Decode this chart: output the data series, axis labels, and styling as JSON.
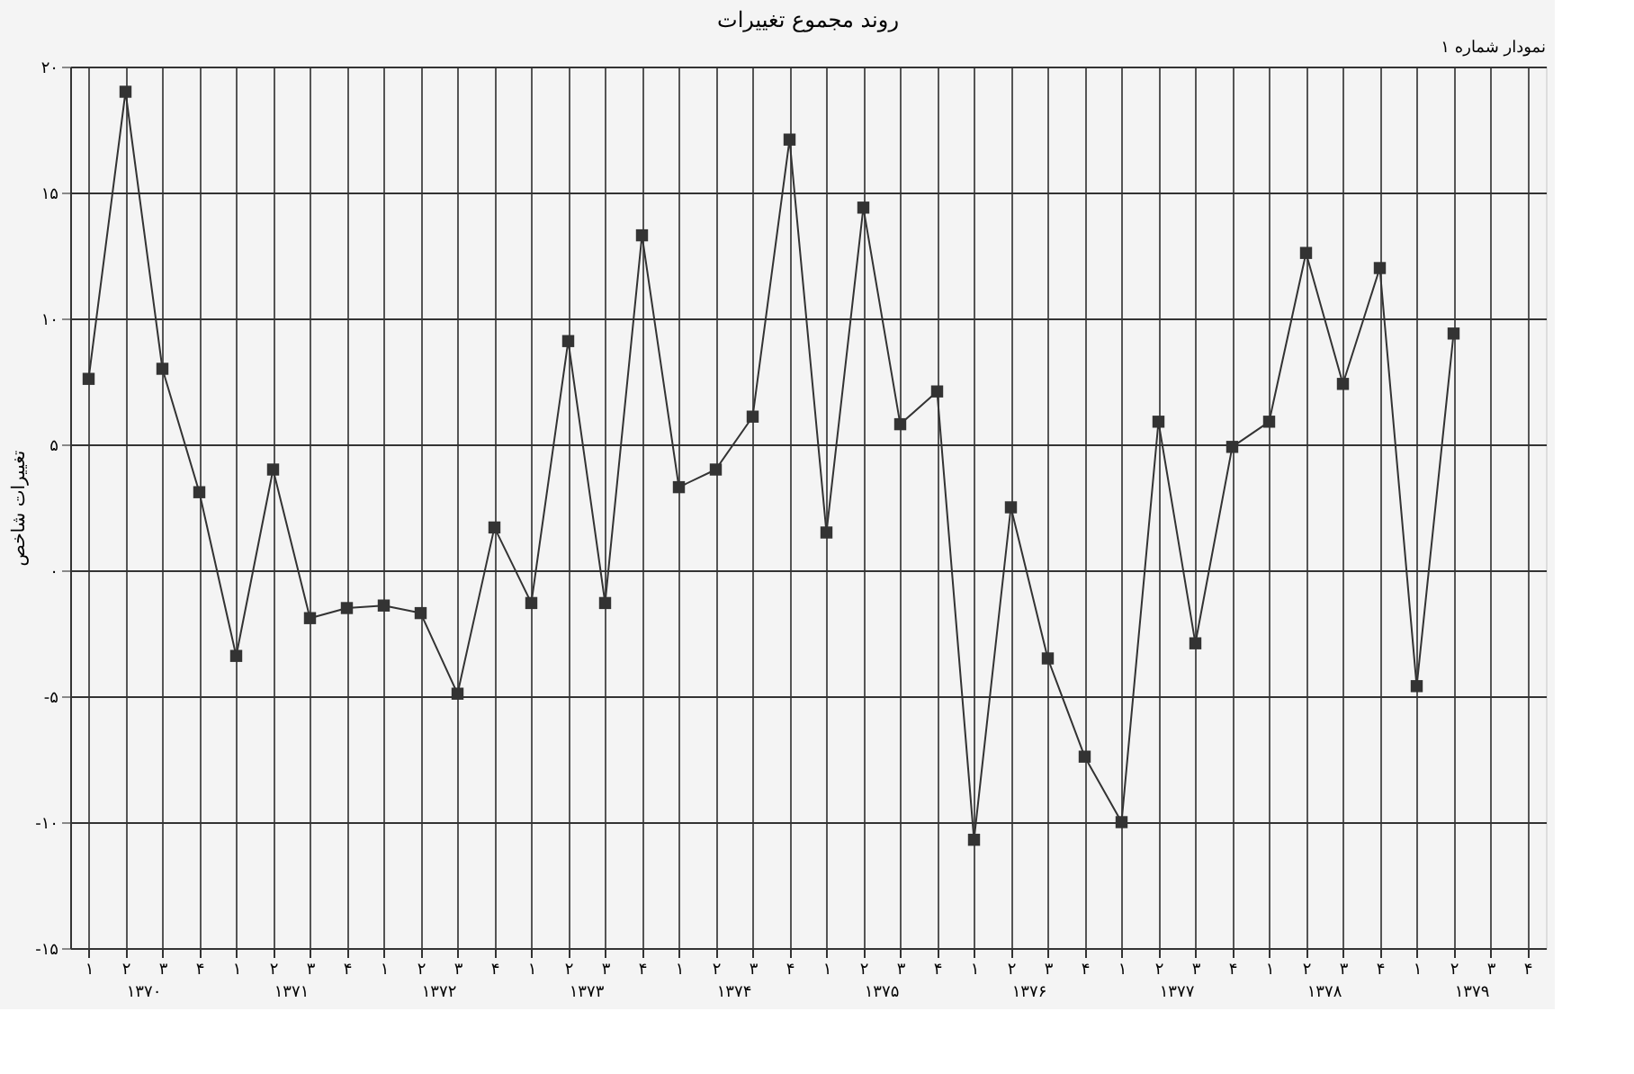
{
  "chart_data": {
    "type": "line",
    "title": "روند مجموع تغییرات",
    "subtitle": "نمودار شماره ۱",
    "ylabel": "تغییرات شاخص",
    "categories": [
      "۱",
      "۲",
      "۳",
      "۴",
      "۱",
      "۲",
      "۳",
      "۴",
      "۱",
      "۲",
      "۳",
      "۴",
      "۱",
      "۲",
      "۳",
      "۴",
      "۱",
      "۲",
      "۳",
      "۴",
      "۱",
      "۲",
      "۳",
      "۴",
      "۱",
      "۲",
      "۳",
      "۴",
      "۱",
      "۲",
      "۳",
      "۴",
      "۱",
      "۲",
      "۳",
      "۴",
      "۱",
      "۲",
      "۳",
      "۴"
    ],
    "annotations": [
      "۱۳۷۰",
      "۱۳۷۱",
      "۱۳۷۲",
      "۱۳۷۳",
      "۱۳۷۴",
      "۱۳۷۵",
      "۱۳۷۶",
      "۱۳۷۷",
      "۱۳۷۸",
      "۱۳۷۹"
    ],
    "series": [
      {
        "color": "#333333",
        "values": [
          7.6,
          19.0,
          8.0,
          3.1,
          -3.4,
          4.0,
          -1.9,
          -1.5,
          -1.4,
          -1.7,
          -4.9,
          1.7,
          -1.3,
          9.1,
          -1.3,
          13.3,
          3.3,
          4.0,
          6.1,
          17.1,
          1.5,
          14.4,
          5.8,
          7.1,
          -10.7,
          2.5,
          -3.5,
          -7.4,
          -10.0,
          5.9,
          -2.9,
          4.9,
          5.9,
          12.6,
          7.4,
          12.0,
          -4.6,
          9.4,
          null,
          null
        ]
      }
    ],
    "ylim": [
      -15,
      20
    ],
    "yticks": [
      {
        "value": -15,
        "label": "-۱۵"
      },
      {
        "value": -10,
        "label": "-۱۰"
      },
      {
        "value": -5,
        "label": "-۵"
      },
      {
        "value": 0,
        "label": "۰"
      },
      {
        "value": 5,
        "label": "۵"
      },
      {
        "value": 10,
        "label": "۱۰"
      },
      {
        "value": 15,
        "label": "۱۵"
      },
      {
        "value": 20,
        "label": "۲۰"
      }
    ],
    "grid": true,
    "marker": "square",
    "line_style": "solid"
  }
}
